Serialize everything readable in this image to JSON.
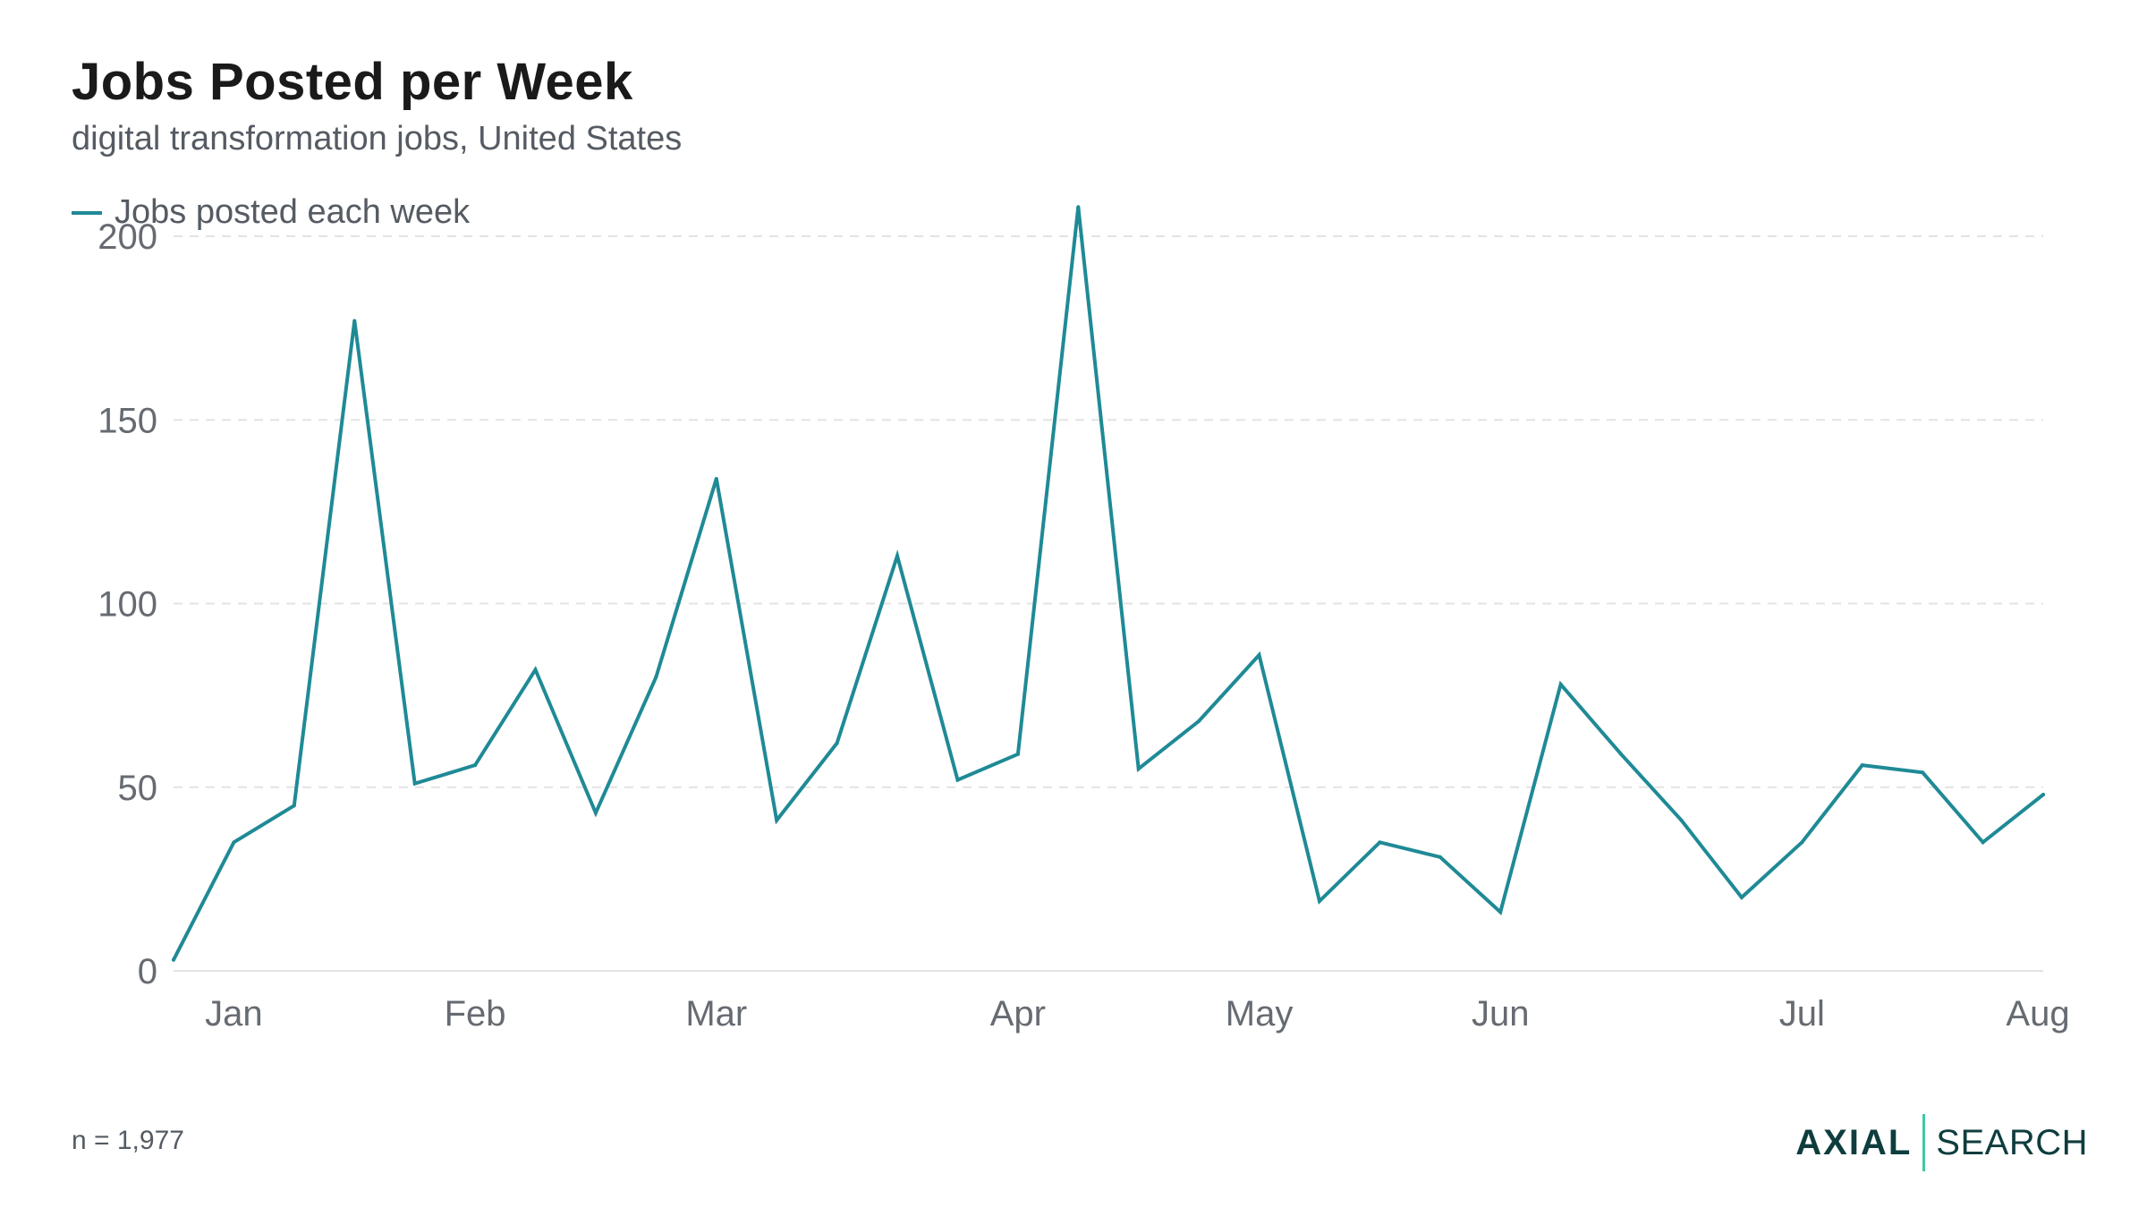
{
  "title": "Jobs Posted per Week",
  "subtitle": "digital transformation jobs, United States",
  "footnote": "n = 1,977",
  "logo": {
    "left": "AXIAL",
    "right": "SEARCH"
  },
  "colors": {
    "line": "#1f8a96",
    "grid": "#e3e3e3",
    "tick": "#666b72",
    "logo_dark": "#0f3d3e",
    "logo_accent": "#41c8a8"
  },
  "chart_data": {
    "type": "line",
    "title": "Jobs Posted per Week",
    "subtitle": "digital transformation jobs, United States",
    "xlabel": "",
    "ylabel": "",
    "ylim": [
      0,
      210
    ],
    "yticks": [
      0,
      50,
      100,
      150,
      200
    ],
    "grid": true,
    "legend_position": "top-left",
    "x_tick_labels": [
      "Jan",
      "Feb",
      "Mar",
      "Apr",
      "May",
      "Jun",
      "Jul",
      "Aug"
    ],
    "x_tick_week_index": [
      1,
      5,
      9,
      14,
      18,
      22,
      27,
      31
    ],
    "series": [
      {
        "name": "Jobs posted each week",
        "values": [
          3,
          35,
          45,
          177,
          51,
          56,
          82,
          43,
          80,
          134,
          41,
          62,
          113,
          52,
          59,
          208,
          55,
          68,
          86,
          19,
          35,
          31,
          16,
          78,
          59,
          41,
          20,
          35,
          56,
          54,
          35,
          48
        ]
      }
    ]
  }
}
